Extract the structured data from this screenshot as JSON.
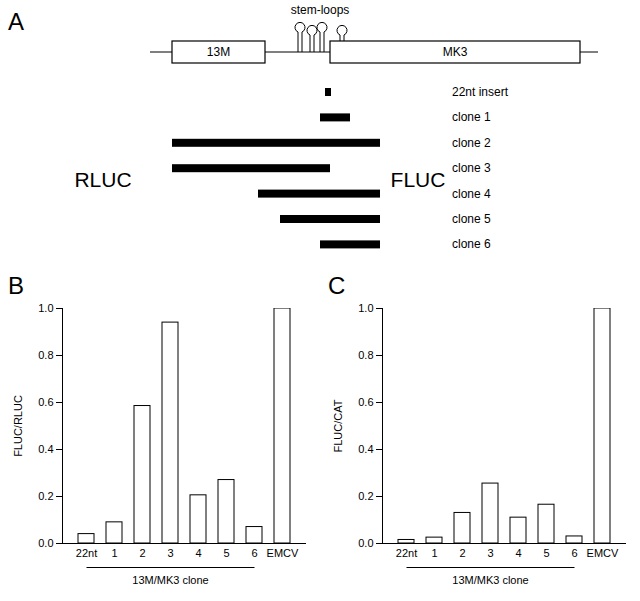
{
  "diagram": {
    "panel_label": "A",
    "annotation": "stem-loops",
    "construct_length": 448,
    "stem_loops": [
      150,
      162,
      172,
      192
    ],
    "genes": [
      {
        "label": "13M",
        "span": [
          22,
          115
        ]
      },
      {
        "label": "MK3",
        "span": [
          180,
          430
        ]
      }
    ],
    "fragments": [
      {
        "label": "22nt insert",
        "span": [
          175,
          181
        ]
      },
      {
        "label": "clone 1",
        "span": [
          170,
          200
        ]
      },
      {
        "label": "clone 2",
        "span": [
          22,
          230
        ]
      },
      {
        "label": "clone 3",
        "span": [
          22,
          180
        ]
      },
      {
        "label": "clone 4",
        "span": [
          108,
          230
        ]
      },
      {
        "label": "clone 5",
        "span": [
          130,
          230
        ]
      },
      {
        "label": "clone 6",
        "span": [
          170,
          230
        ]
      }
    ],
    "left_label": "RLUC",
    "right_label": "FLUC"
  },
  "chart_data": [
    {
      "type": "bar",
      "title": "B",
      "ylabel": "FLUC/RLUC",
      "xlabel": "13M/MK3 clone",
      "xlabel_categories": [
        "22nt",
        "1",
        "2",
        "3",
        "4",
        "5",
        "6"
      ],
      "categories": [
        "22nt",
        "1",
        "2",
        "3",
        "4",
        "5",
        "6",
        "EMCV"
      ],
      "values": [
        0.04,
        0.09,
        0.585,
        0.94,
        0.205,
        0.27,
        0.07,
        1.0
      ],
      "color": "#ffffff",
      "ylim": [
        0,
        1.0
      ],
      "yticks": [
        {
          "value": 0,
          "label": "0.0"
        },
        0.2,
        0.4,
        0.6,
        0.8,
        {
          "value": 1.0,
          "label": "1.0"
        }
      ],
      "grid": false
    },
    {
      "type": "bar",
      "title": "C",
      "ylabel": "FLUC/CAT",
      "xlabel": "13M/MK3 clone",
      "xlabel_categories": [
        "22nt",
        "1",
        "2",
        "3",
        "4",
        "5",
        "6"
      ],
      "categories": [
        "22nt",
        "1",
        "2",
        "3",
        "4",
        "5",
        "6",
        "EMCV"
      ],
      "values": [
        0.015,
        0.025,
        0.13,
        0.255,
        0.11,
        0.165,
        0.03,
        1.0
      ],
      "color": "#ffffff",
      "ylim": [
        0,
        1.0
      ],
      "yticks": [
        {
          "value": 0,
          "label": "0.0"
        },
        0.2,
        0.4,
        0.6,
        0.8,
        {
          "value": 1.0,
          "label": "1.0"
        }
      ],
      "grid": false
    }
  ]
}
